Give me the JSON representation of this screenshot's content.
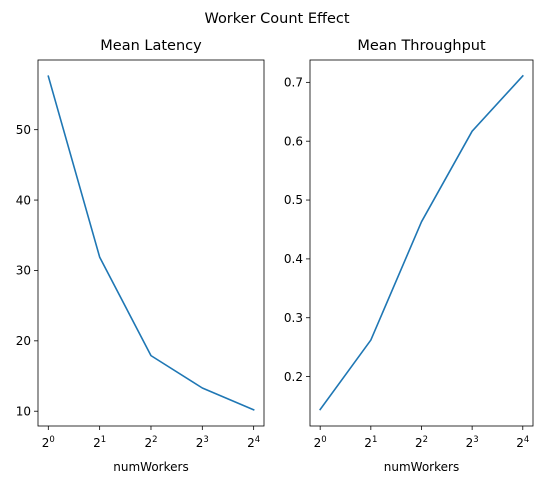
{
  "figure": {
    "suptitle": "Worker Count Effect"
  },
  "chart_data": [
    {
      "type": "line",
      "title": "Mean Latency",
      "xlabel": "numWorkers",
      "ylabel": "",
      "x_scale": "log2",
      "x": [
        1,
        2,
        4,
        8,
        16
      ],
      "xticks": [
        {
          "value": 1,
          "base": "2",
          "exp": "0"
        },
        {
          "value": 2,
          "base": "2",
          "exp": "1"
        },
        {
          "value": 4,
          "base": "2",
          "exp": "2"
        },
        {
          "value": 8,
          "base": "2",
          "exp": "3"
        },
        {
          "value": 16,
          "base": "2",
          "exp": "4"
        }
      ],
      "yticks": [
        {
          "value": 10,
          "label": "10"
        },
        {
          "value": 20,
          "label": "20"
        },
        {
          "value": 30,
          "label": "30"
        },
        {
          "value": 40,
          "label": "40"
        },
        {
          "value": 50,
          "label": "50"
        }
      ],
      "xlim": [
        0.87,
        18.4
      ],
      "ylim": [
        7.9,
        59.9
      ],
      "grid": false,
      "series": [
        {
          "color": "#1f77b4",
          "values": [
            57.6,
            31.9,
            17.9,
            13.3,
            10.2
          ]
        }
      ]
    },
    {
      "type": "line",
      "title": "Mean Throughput",
      "xlabel": "numWorkers",
      "ylabel": "",
      "x_scale": "log2",
      "x": [
        1,
        2,
        4,
        8,
        16
      ],
      "xticks": [
        {
          "value": 1,
          "base": "2",
          "exp": "0"
        },
        {
          "value": 2,
          "base": "2",
          "exp": "1"
        },
        {
          "value": 4,
          "base": "2",
          "exp": "2"
        },
        {
          "value": 8,
          "base": "2",
          "exp": "3"
        },
        {
          "value": 16,
          "base": "2",
          "exp": "4"
        }
      ],
      "yticks": [
        {
          "value": 0.2,
          "label": "0.2"
        },
        {
          "value": 0.3,
          "label": "0.3"
        },
        {
          "value": 0.4,
          "label": "0.4"
        },
        {
          "value": 0.5,
          "label": "0.5"
        },
        {
          "value": 0.6,
          "label": "0.6"
        },
        {
          "value": 0.7,
          "label": "0.7"
        }
      ],
      "xlim": [
        0.87,
        18.4
      ],
      "ylim": [
        0.116,
        0.738
      ],
      "grid": false,
      "series": [
        {
          "color": "#1f77b4",
          "values": [
            0.144,
            0.262,
            0.463,
            0.617,
            0.711
          ]
        }
      ]
    }
  ]
}
